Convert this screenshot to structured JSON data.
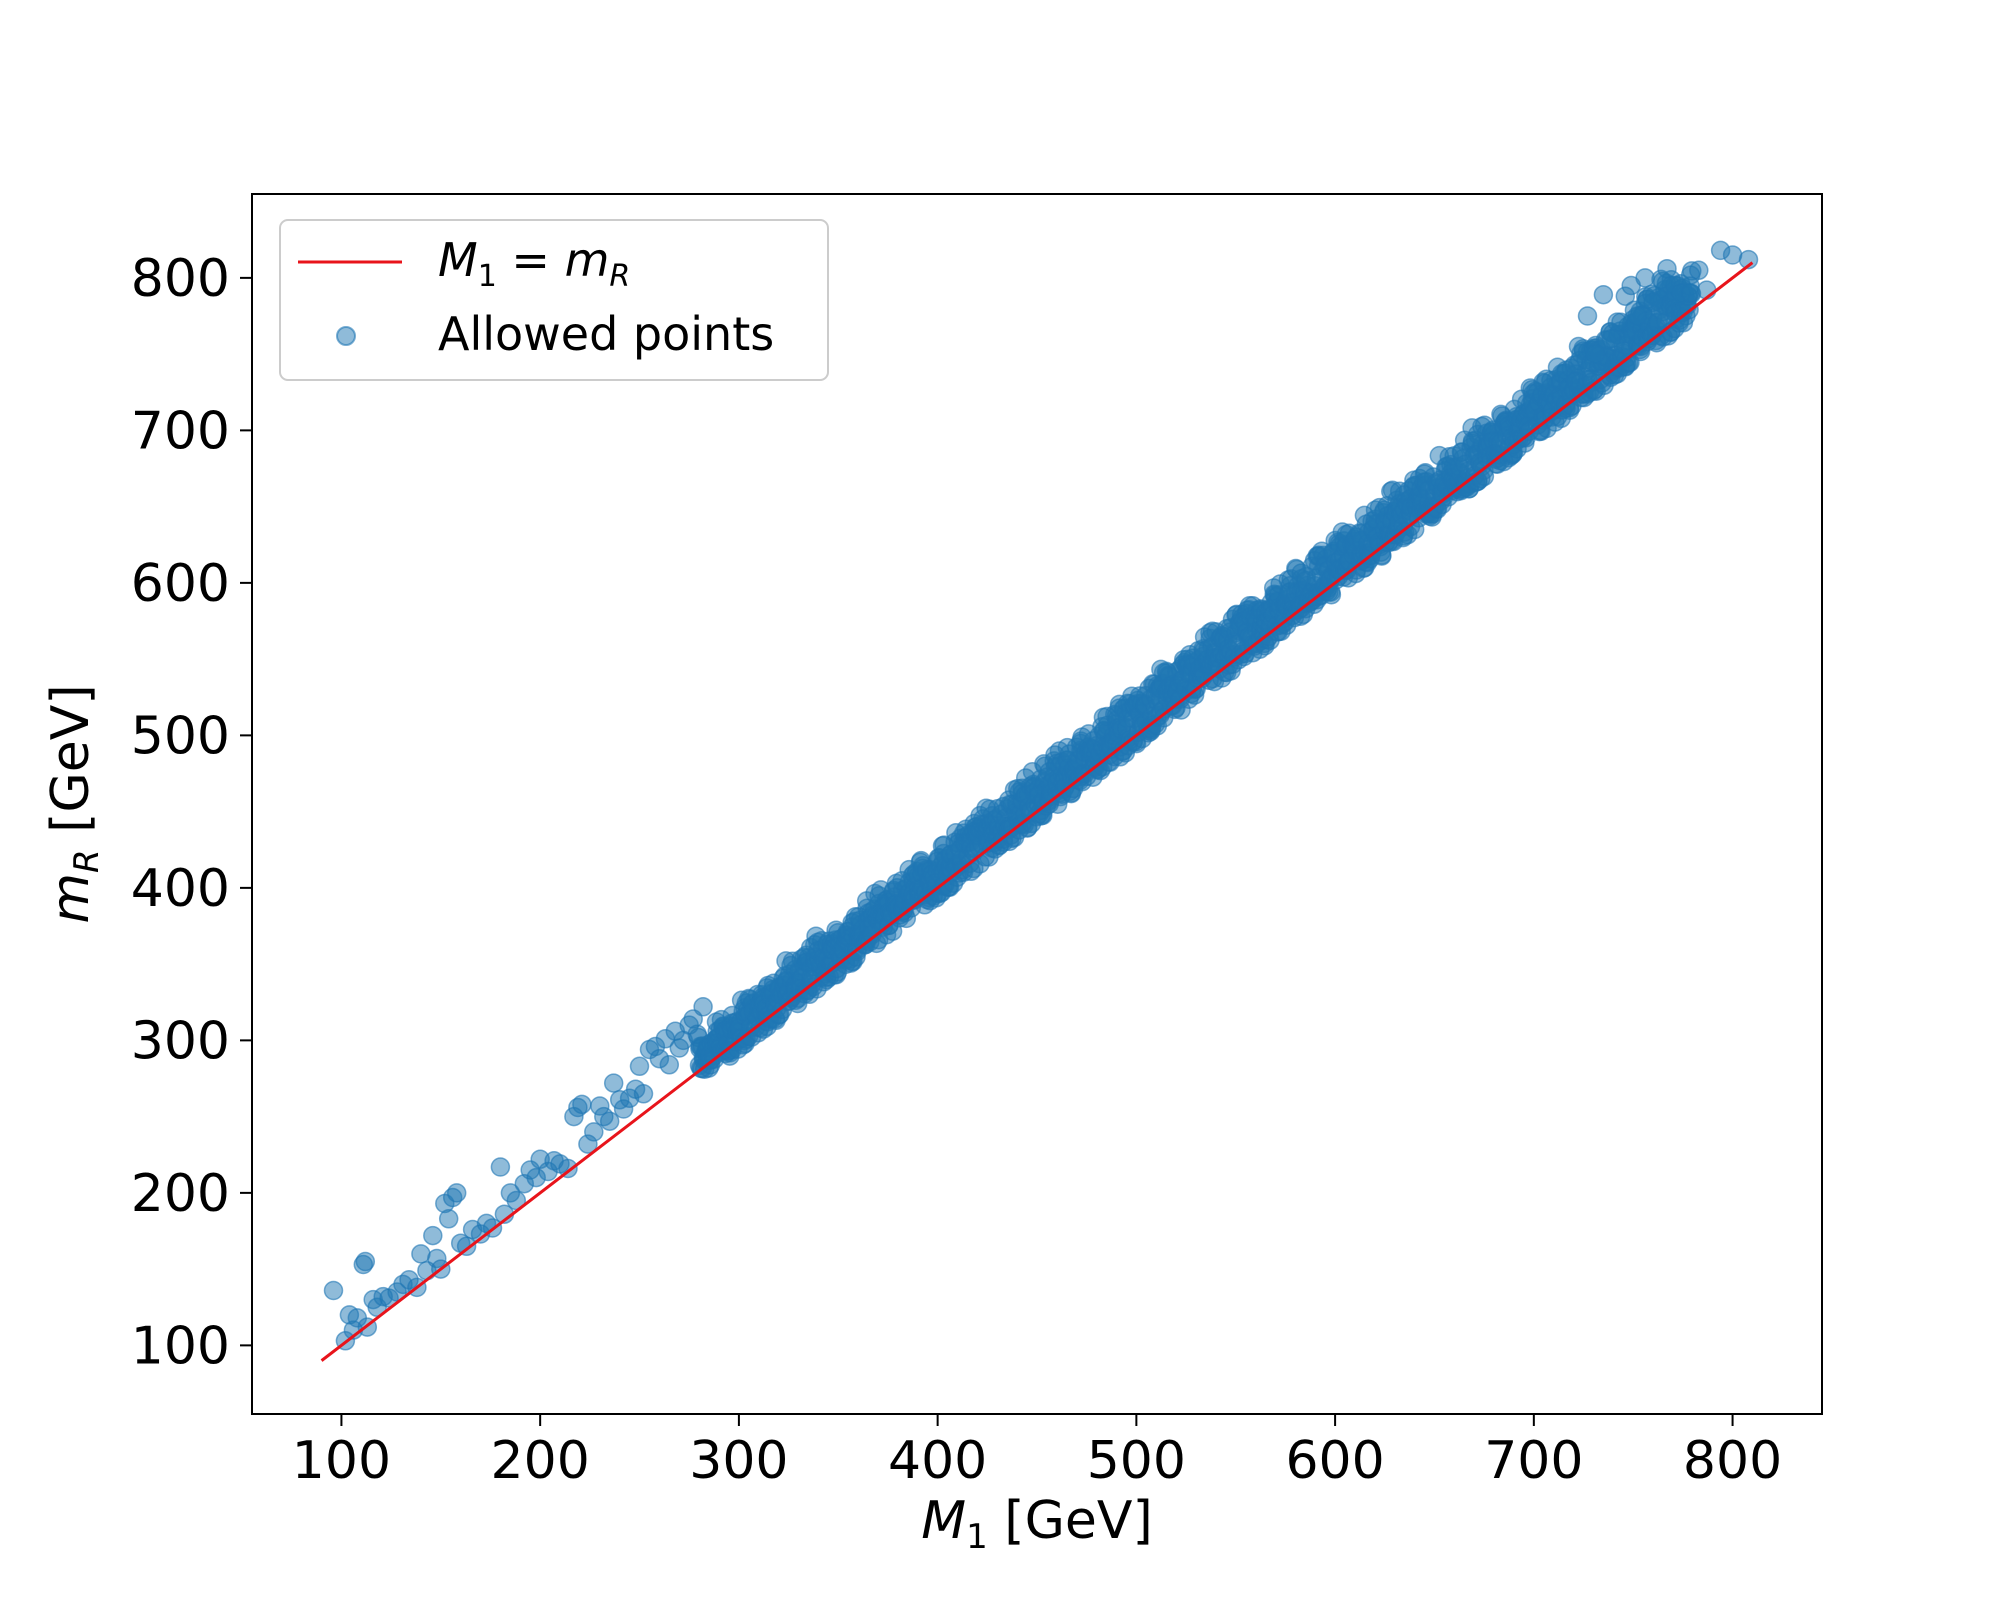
{
  "chart_data": {
    "type": "scatter",
    "title": "",
    "xlabel": {
      "symbol": "M",
      "sub": "1",
      "unit": "[GeV]"
    },
    "ylabel": {
      "symbol": "m",
      "sub": "R",
      "unit": "[GeV]"
    },
    "xlim": [
      55,
      845
    ],
    "ylim": [
      55,
      855
    ],
    "xticks": [
      100,
      200,
      300,
      400,
      500,
      600,
      700,
      800
    ],
    "yticks": [
      100,
      200,
      300,
      400,
      500,
      600,
      700,
      800
    ],
    "grid": false,
    "legend": {
      "placement": "top-left",
      "entries": [
        {
          "kind": "line",
          "symbol": "M",
          "sub": "1",
          "equals": "=",
          "symbol2": "m",
          "sub2": "R"
        },
        {
          "kind": "marker",
          "label": "Allowed points"
        }
      ]
    },
    "series": [
      {
        "kind": "line",
        "color": "#e8141b",
        "x": [
          90,
          810
        ],
        "y": [
          90,
          810
        ]
      },
      {
        "kind": "scatter",
        "name": "Allowed points",
        "color": "#1f77b4",
        "alpha": 0.5,
        "band": {
          "x_range": [
            280,
            780
          ],
          "lower_offset": -6,
          "upper_offset": 36
        },
        "points": [
          [
            96,
            136
          ],
          [
            102,
            103
          ],
          [
            104,
            120
          ],
          [
            106,
            110
          ],
          [
            108,
            118
          ],
          [
            111,
            153
          ],
          [
            112,
            155
          ],
          [
            113,
            112
          ],
          [
            116,
            130
          ],
          [
            118,
            125
          ],
          [
            121,
            132
          ],
          [
            124,
            131
          ],
          [
            128,
            135
          ],
          [
            131,
            140
          ],
          [
            134,
            143
          ],
          [
            138,
            138
          ],
          [
            140,
            160
          ],
          [
            143,
            149
          ],
          [
            146,
            172
          ],
          [
            148,
            157
          ],
          [
            150,
            150
          ],
          [
            152,
            193
          ],
          [
            154,
            183
          ],
          [
            156,
            197
          ],
          [
            158,
            200
          ],
          [
            160,
            167
          ],
          [
            163,
            165
          ],
          [
            166,
            176
          ],
          [
            170,
            173
          ],
          [
            173,
            180
          ],
          [
            176,
            177
          ],
          [
            180,
            217
          ],
          [
            182,
            186
          ],
          [
            185,
            200
          ],
          [
            188,
            195
          ],
          [
            192,
            206
          ],
          [
            195,
            215
          ],
          [
            198,
            210
          ],
          [
            200,
            222
          ],
          [
            204,
            214
          ],
          [
            207,
            221
          ],
          [
            210,
            219
          ],
          [
            214,
            216
          ],
          [
            217,
            250
          ],
          [
            219,
            256
          ],
          [
            221,
            258
          ],
          [
            224,
            232
          ],
          [
            227,
            240
          ],
          [
            230,
            257
          ],
          [
            232,
            250
          ],
          [
            235,
            247
          ],
          [
            237,
            272
          ],
          [
            240,
            261
          ],
          [
            242,
            255
          ],
          [
            245,
            262
          ],
          [
            248,
            268
          ],
          [
            250,
            283
          ],
          [
            252,
            265
          ],
          [
            255,
            294
          ],
          [
            258,
            296
          ],
          [
            260,
            288
          ],
          [
            263,
            301
          ],
          [
            265,
            284
          ],
          [
            268,
            306
          ],
          [
            270,
            295
          ],
          [
            272,
            300
          ],
          [
            275,
            310
          ],
          [
            277,
            314
          ],
          [
            279,
            304
          ],
          [
            282,
            322
          ],
          [
            742,
            771
          ],
          [
            746,
            788
          ],
          [
            749,
            795
          ],
          [
            752,
            775
          ],
          [
            756,
            800
          ],
          [
            760,
            784
          ],
          [
            764,
            799
          ],
          [
            767,
            806
          ],
          [
            771,
            795
          ],
          [
            774,
            790
          ],
          [
            779,
            790
          ],
          [
            783,
            805
          ],
          [
            787,
            792
          ],
          [
            794,
            818
          ],
          [
            800,
            815
          ],
          [
            808,
            812
          ],
          [
            735,
            789
          ],
          [
            727,
            775
          ],
          [
            731,
            750
          ],
          [
            739,
            760
          ]
        ]
      }
    ]
  }
}
